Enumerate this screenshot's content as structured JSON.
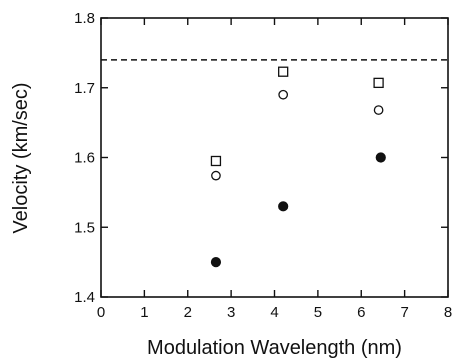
{
  "chart_data": {
    "type": "scatter",
    "title": "",
    "xlabel": "Modulation Wavelength (nm)",
    "ylabel": "Velocity (km/sec)",
    "xlim": [
      0,
      8
    ],
    "ylim": [
      1.4,
      1.8
    ],
    "x_ticks": [
      "0",
      "1",
      "2",
      "3",
      "4",
      "5",
      "6",
      "7",
      "8"
    ],
    "y_ticks": [
      "1.4",
      "1.5",
      "1.6",
      "1.7",
      "1.8"
    ],
    "grid": false,
    "legend": "none",
    "reference_line": {
      "y": 1.74,
      "style": "dashed"
    },
    "series": [
      {
        "marker": "open-square",
        "points": [
          [
            2.65,
            1.595
          ],
          [
            4.2,
            1.723
          ],
          [
            6.4,
            1.707
          ]
        ]
      },
      {
        "marker": "open-circle",
        "points": [
          [
            2.65,
            1.574
          ],
          [
            4.2,
            1.69
          ],
          [
            6.4,
            1.668
          ]
        ]
      },
      {
        "marker": "filled-circle",
        "points": [
          [
            2.65,
            1.45
          ],
          [
            4.2,
            1.53
          ],
          [
            6.45,
            1.6
          ]
        ]
      }
    ]
  }
}
